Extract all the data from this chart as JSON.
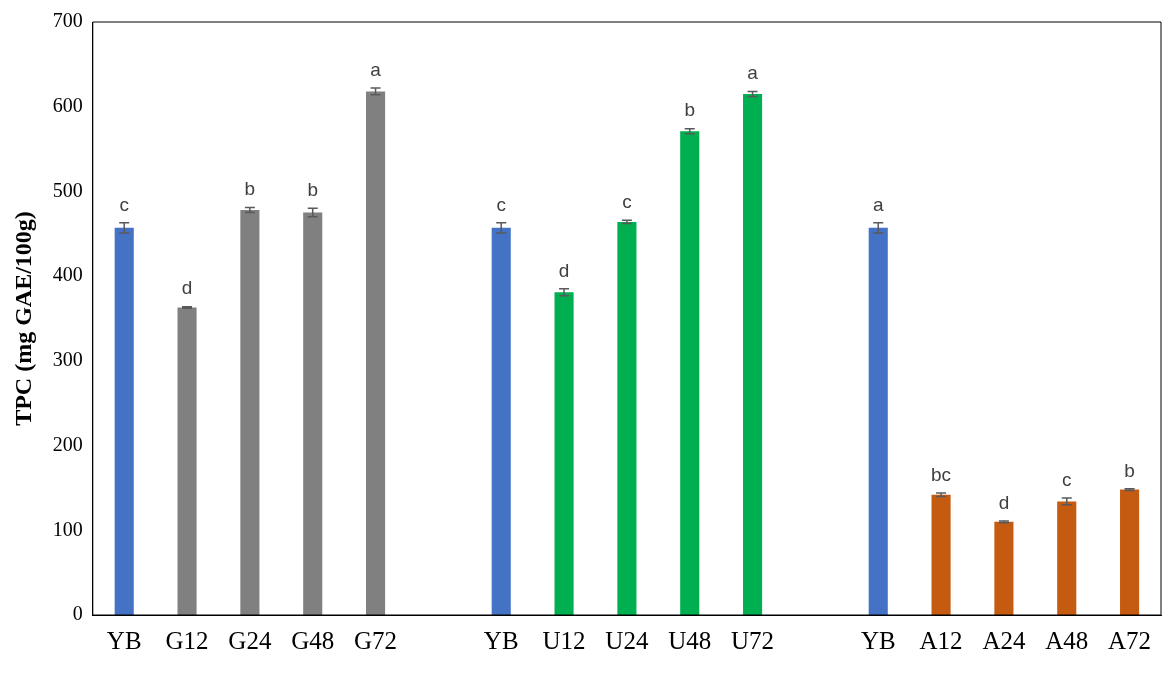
{
  "chart_data": {
    "type": "bar",
    "ylabel": "TPC (mg GAE/100g)",
    "categories": [
      "YB",
      "G12",
      "G24",
      "G48",
      "G72",
      null,
      "YB",
      "U12",
      "U24",
      "U48",
      "U72",
      null,
      "YB",
      "A12",
      "A24",
      "A48",
      "A72"
    ],
    "values": [
      457,
      363,
      478,
      475,
      618,
      null,
      457,
      381,
      464,
      571,
      615,
      null,
      457,
      142,
      110,
      134,
      148
    ],
    "errors": [
      6,
      1,
      3,
      5,
      4,
      null,
      6,
      4,
      2,
      3,
      3,
      null,
      6,
      2,
      1,
      4,
      1
    ],
    "value_labels": [
      "c",
      "d",
      "b",
      "b",
      "a",
      null,
      "c",
      "d",
      "c",
      "b",
      "a",
      null,
      "a",
      "bc",
      "d",
      "c",
      "b"
    ],
    "colors": [
      "#4472c4",
      "#808080",
      "#808080",
      "#808080",
      "#808080",
      "#808080",
      "#4472c4",
      "#00b050",
      "#00b050",
      "#00b050",
      "#00b050",
      "#00b050",
      "#4472c4",
      "#c55a11",
      "#c55a11",
      "#c55a11",
      "#c55a11"
    ],
    "ylim": [
      0,
      700
    ],
    "yticks": [
      0,
      100,
      200,
      300,
      400,
      500,
      600,
      700
    ],
    "grid": false,
    "legend": false
  }
}
